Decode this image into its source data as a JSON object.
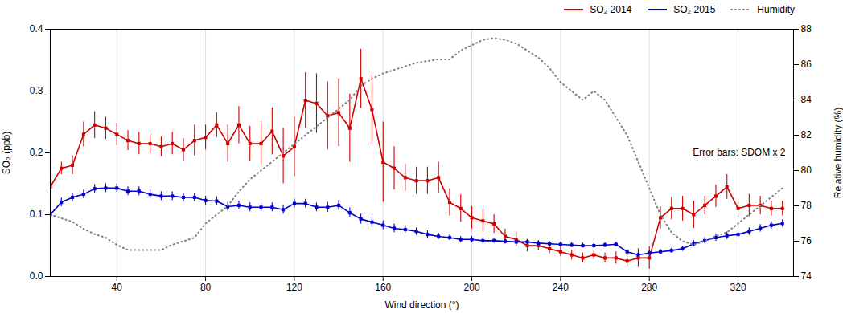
{
  "chart_data": {
    "type": "line",
    "x": [
      10,
      15,
      20,
      25,
      30,
      35,
      40,
      45,
      50,
      55,
      60,
      65,
      70,
      75,
      80,
      85,
      90,
      95,
      100,
      105,
      110,
      115,
      120,
      125,
      130,
      135,
      140,
      145,
      150,
      155,
      160,
      165,
      170,
      175,
      180,
      185,
      190,
      195,
      200,
      205,
      210,
      215,
      220,
      225,
      230,
      235,
      240,
      245,
      250,
      255,
      260,
      265,
      270,
      275,
      280,
      285,
      290,
      295,
      300,
      305,
      310,
      315,
      320,
      325,
      330,
      335,
      340
    ],
    "series": [
      {
        "name": "SO₂ 2014",
        "color": "#cc0000",
        "marker": "square",
        "line_style": "solid",
        "values": [
          0.145,
          0.175,
          0.18,
          0.23,
          0.245,
          0.24,
          0.23,
          0.22,
          0.215,
          0.215,
          0.21,
          0.215,
          0.205,
          0.22,
          0.225,
          0.245,
          0.215,
          0.245,
          0.215,
          0.215,
          0.235,
          0.195,
          0.21,
          0.285,
          0.28,
          0.26,
          0.265,
          0.24,
          0.32,
          0.27,
          0.185,
          0.175,
          0.16,
          0.155,
          0.155,
          0.16,
          0.12,
          0.11,
          0.095,
          0.09,
          0.085,
          0.065,
          0.06,
          0.05,
          0.05,
          0.045,
          0.04,
          0.035,
          0.03,
          0.035,
          0.03,
          0.03,
          0.025,
          0.03,
          0.03,
          0.095,
          0.11,
          0.11,
          0.1,
          0.115,
          0.13,
          0.145,
          0.11,
          0.115,
          0.115,
          0.11,
          0.11
        ],
        "errors": [
          0.012,
          0.01,
          0.015,
          0.02,
          0.022,
          0.018,
          0.018,
          0.016,
          0.018,
          0.016,
          0.016,
          0.018,
          0.018,
          0.025,
          0.02,
          0.02,
          0.03,
          0.03,
          0.028,
          0.035,
          0.038,
          0.045,
          0.048,
          0.045,
          0.048,
          0.055,
          0.055,
          0.055,
          0.048,
          0.055,
          0.065,
          0.035,
          0.022,
          0.022,
          0.022,
          0.025,
          0.022,
          0.022,
          0.018,
          0.018,
          0.015,
          0.012,
          0.012,
          0.01,
          0.008,
          0.008,
          0.008,
          0.008,
          0.008,
          0.008,
          0.008,
          0.01,
          0.01,
          0.015,
          0.018,
          0.018,
          0.018,
          0.02,
          0.022,
          0.015,
          0.018,
          0.02,
          0.015,
          0.018,
          0.015,
          0.012,
          0.012
        ]
      },
      {
        "name": "SO₂ 2015",
        "color": "#0000cc",
        "marker": "square",
        "line_style": "solid",
        "values": [
          0.1,
          0.12,
          0.128,
          0.133,
          0.142,
          0.143,
          0.143,
          0.138,
          0.138,
          0.133,
          0.13,
          0.13,
          0.128,
          0.128,
          0.123,
          0.122,
          0.113,
          0.115,
          0.112,
          0.112,
          0.112,
          0.108,
          0.118,
          0.118,
          0.112,
          0.112,
          0.115,
          0.103,
          0.093,
          0.088,
          0.083,
          0.078,
          0.076,
          0.073,
          0.068,
          0.065,
          0.063,
          0.06,
          0.06,
          0.058,
          0.058,
          0.057,
          0.056,
          0.056,
          0.054,
          0.053,
          0.052,
          0.051,
          0.05,
          0.05,
          0.051,
          0.052,
          0.04,
          0.035,
          0.038,
          0.04,
          0.042,
          0.045,
          0.053,
          0.058,
          0.063,
          0.066,
          0.068,
          0.073,
          0.078,
          0.083,
          0.086
        ],
        "errors": [
          0.007,
          0.007,
          0.007,
          0.007,
          0.007,
          0.007,
          0.007,
          0.007,
          0.007,
          0.007,
          0.007,
          0.007,
          0.007,
          0.007,
          0.007,
          0.007,
          0.007,
          0.007,
          0.007,
          0.007,
          0.007,
          0.007,
          0.007,
          0.007,
          0.007,
          0.008,
          0.008,
          0.008,
          0.008,
          0.008,
          0.007,
          0.007,
          0.006,
          0.006,
          0.006,
          0.005,
          0.005,
          0.005,
          0.005,
          0.005,
          0.004,
          0.004,
          0.004,
          0.004,
          0.004,
          0.004,
          0.004,
          0.004,
          0.004,
          0.004,
          0.004,
          0.004,
          0.004,
          0.004,
          0.004,
          0.004,
          0.004,
          0.004,
          0.005,
          0.005,
          0.006,
          0.006,
          0.006,
          0.006,
          0.006,
          0.006,
          0.006
        ]
      },
      {
        "name": "Humidity",
        "color": "#808080",
        "line_style": "dotted",
        "axis": "y2",
        "values": [
          77.5,
          77.3,
          77.1,
          76.7,
          76.4,
          76.2,
          75.8,
          75.5,
          75.5,
          75.5,
          75.5,
          75.8,
          76.0,
          76.2,
          77.0,
          77.5,
          78.0,
          78.8,
          79.5,
          80.0,
          80.5,
          81.0,
          81.5,
          82.0,
          82.5,
          83.0,
          83.5,
          84.0,
          84.8,
          85.2,
          85.5,
          85.7,
          85.9,
          86.1,
          86.2,
          86.3,
          86.3,
          86.8,
          87.1,
          87.4,
          87.5,
          87.4,
          87.2,
          86.8,
          86.4,
          85.8,
          85.0,
          84.5,
          84.0,
          84.5,
          84.0,
          83.0,
          82.0,
          80.5,
          79.0,
          77.5,
          76.5,
          76.0,
          75.8,
          76.0,
          76.3,
          76.5,
          77.0,
          77.5,
          78.0,
          78.5,
          79.0
        ]
      }
    ],
    "xlim": [
      10,
      345
    ],
    "xticks": [
      40,
      80,
      120,
      160,
      200,
      240,
      280,
      320
    ],
    "ylim": [
      0.0,
      0.4
    ],
    "yticks": [
      {
        "value": 0.0,
        "label": "0.0"
      },
      0.1,
      0.2,
      0.3,
      0.4
    ],
    "y2lim": [
      74,
      88
    ],
    "y2ticks": [
      74,
      76,
      78,
      80,
      82,
      84,
      86,
      88
    ],
    "xlabel": "Wind direction (°)",
    "ylabel": "SO₂ (ppb)",
    "y2label": "Relative humidity (%)",
    "annotation": "Error bars: SDOM x 2",
    "legend": "upper right",
    "grid": true
  }
}
